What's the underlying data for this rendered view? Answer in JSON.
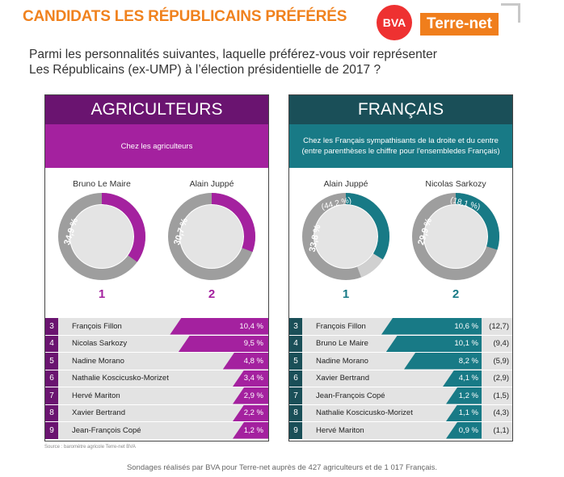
{
  "header": {
    "title": "CANDIDATS LES RÉPUBLICAINS PRÉFÉRÉS",
    "logo_bva": "BVA",
    "logo_terrenet": "Terre-net"
  },
  "question": {
    "line1": "Parmi les personnalités suivantes, laquelle préférez-vous voir représenter",
    "line2": "Les Républicains (ex-UMP) à l’élection présidentielle de 2017 ?"
  },
  "colors": {
    "orange": "#f0821e",
    "purple": "#a4219f",
    "purple_dark": "#6a1470",
    "teal": "#187a86",
    "teal_dark": "#1a4f58",
    "ring_gray": "#9e9e9e",
    "ring_light": "#d0d0d0"
  },
  "chart_data": [
    {
      "type": "bar",
      "title": "AGRICULTEURS",
      "subtitle": "Chez les agriculteurs",
      "top": [
        {
          "rank": "1",
          "name": "Bruno Le Maire",
          "value": 34.9,
          "label": "34,9 %"
        },
        {
          "rank": "2",
          "name": "Alain Juppé",
          "value": 30.7,
          "label": "30,7 %"
        }
      ],
      "rows": [
        {
          "rank": "3",
          "name": "François Fillon",
          "value": 10.4,
          "label": "10,4 %"
        },
        {
          "rank": "4",
          "name": "Nicolas Sarkozy",
          "value": 9.5,
          "label": "9,5 %"
        },
        {
          "rank": "5",
          "name": "Nadine Morano",
          "value": 4.8,
          "label": "4,8 %"
        },
        {
          "rank": "6",
          "name": "Nathalie Koscicusko-Morizet",
          "value": 3.4,
          "label": "3,4 %"
        },
        {
          "rank": "7",
          "name": "Hervé Mariton",
          "value": 2.9,
          "label": "2,9 %"
        },
        {
          "rank": "8",
          "name": "Xavier Bertrand",
          "value": 2.2,
          "label": "2,2 %"
        },
        {
          "rank": "9",
          "name": "Jean-François Copé",
          "value": 1.2,
          "label": "1,2 %"
        }
      ]
    },
    {
      "type": "bar",
      "title": "FRANÇAIS",
      "subtitle_line1": "Chez les Français sympathisants de la droite et du centre",
      "subtitle_line2": "(entre parenthèses le chiffre pour l'ensembledes Français)",
      "top": [
        {
          "rank": "1",
          "name": "Alain Juppé",
          "value": 33.8,
          "label": "33,8 %",
          "all_value": 44.2,
          "all_label": "(44,2 %)"
        },
        {
          "rank": "2",
          "name": "Nicolas Sarkozy",
          "value": 29.9,
          "label": "29,9 %",
          "all_value": 18.1,
          "all_label": "(18,1 %)"
        }
      ],
      "rows": [
        {
          "rank": "3",
          "name": "François Fillon",
          "value": 10.6,
          "label": "10,6 %",
          "all_label": "(12,7)"
        },
        {
          "rank": "4",
          "name": "Bruno Le Maire",
          "value": 10.1,
          "label": "10,1 %",
          "all_label": "(9,4)"
        },
        {
          "rank": "5",
          "name": "Nadine Morano",
          "value": 8.2,
          "label": "8,2 %",
          "all_label": "(5,9)"
        },
        {
          "rank": "6",
          "name": "Xavier Bertrand",
          "value": 4.1,
          "label": "4,1 %",
          "all_label": "(2,9)"
        },
        {
          "rank": "7",
          "name": "Jean-François Copé",
          "value": 1.2,
          "label": "1,2 %",
          "all_label": "(1,5)"
        },
        {
          "rank": "8",
          "name": "Nathalie Koscicusko-Morizet",
          "value": 1.1,
          "label": "1,1 %",
          "all_label": "(4,3)"
        },
        {
          "rank": "9",
          "name": "Hervé Mariton",
          "value": 0.9,
          "label": "0,9 %",
          "all_label": "(1,1)"
        }
      ]
    }
  ],
  "source": "Source : baromètre agricole Terre-net BVA",
  "footer": "Sondages réalisés par BVA pour Terre-net auprès de 427 agriculteurs et de 1 017 Français."
}
